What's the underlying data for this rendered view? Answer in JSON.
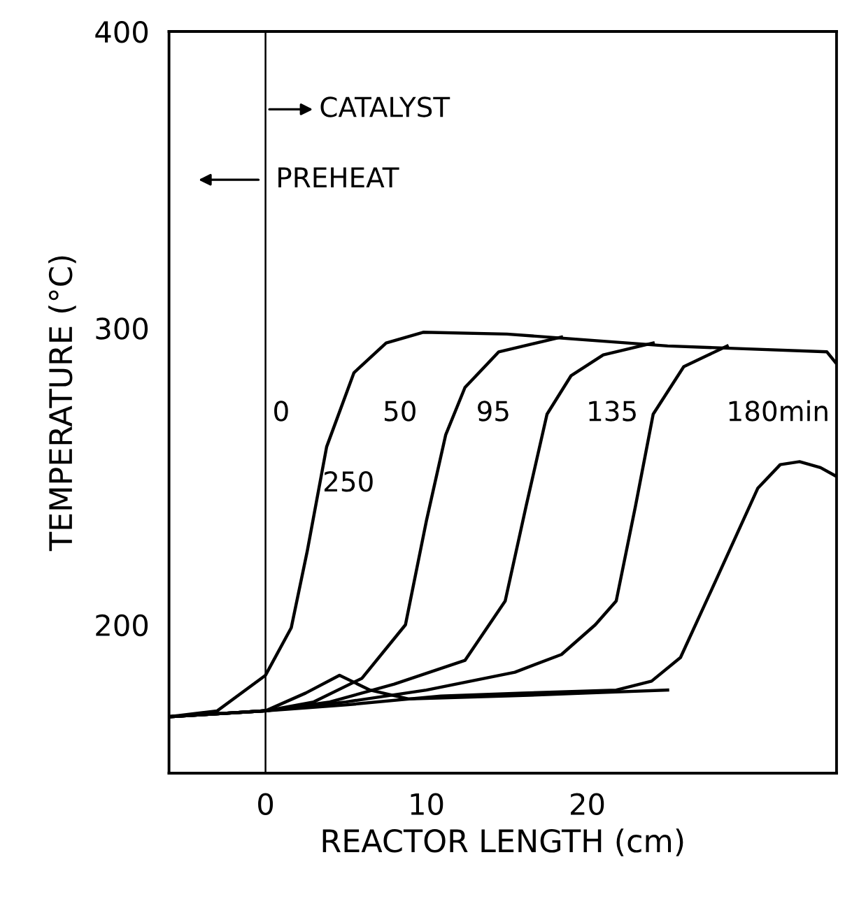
{
  "chart_data": {
    "type": "line",
    "xlabel": "REACTOR LENGTH (cm)",
    "ylabel": "TEMPERATURE (°C)",
    "xlim": [
      -6,
      35.5
    ],
    "ylim": [
      150,
      400
    ],
    "xticks": [
      0,
      10,
      20
    ],
    "yticks": [
      200,
      300,
      400
    ],
    "grid": false,
    "legend": false,
    "marker": "none",
    "line_style": "solid",
    "ref_lines": [
      {
        "axis": "x",
        "value": 0,
        "color": "#000000"
      }
    ],
    "series": [
      {
        "color": "#000000",
        "x": [
          -6,
          -3,
          0,
          1.6,
          2.6,
          3.8,
          5.5,
          7.5,
          9.8,
          15,
          20,
          25,
          30,
          34.9,
          35.5
        ],
        "values": [
          169,
          171,
          183,
          199,
          225,
          260,
          285,
          295,
          298.6,
          298,
          296,
          294,
          293,
          292,
          288
        ]
      },
      {
        "color": "#000000",
        "x": [
          -6,
          0,
          3,
          6,
          8.7,
          10,
          11.2,
          12.4,
          14.5,
          18.4
        ],
        "values": [
          169,
          171,
          174,
          182,
          200,
          235,
          264,
          280,
          292,
          297
        ]
      },
      {
        "color": "#000000",
        "x": [
          -6,
          0,
          4,
          8,
          12.4,
          14.9,
          16.2,
          17.5,
          19,
          21,
          24.1
        ],
        "values": [
          169,
          171,
          174,
          180,
          188,
          208,
          240,
          271,
          284,
          291,
          295
        ]
      },
      {
        "color": "#000000",
        "x": [
          -6,
          0,
          5,
          10,
          15.5,
          18.4,
          20.5,
          21.8,
          23,
          24.1,
          26,
          28.7
        ],
        "values": [
          169,
          171,
          174,
          178,
          184,
          190,
          200,
          208,
          240,
          271,
          287,
          294
        ]
      },
      {
        "color": "#000000",
        "x": [
          -6,
          0,
          5,
          10.9,
          16,
          21.8,
          24,
          25.8,
          28,
          30.6,
          32,
          33.2,
          34.5,
          35.5
        ],
        "values": [
          169,
          171,
          173,
          176,
          177,
          178,
          181,
          189,
          215,
          246,
          254,
          255,
          253,
          250
        ]
      },
      {
        "color": "#000000",
        "x": [
          -6,
          0,
          2.5,
          4.6,
          6.5,
          8.9,
          15,
          20,
          25
        ],
        "values": [
          169,
          171,
          177,
          183,
          178,
          175,
          176,
          177,
          178
        ]
      }
    ],
    "annotations": [
      "0",
      "50",
      "95",
      "135",
      "180min",
      "250",
      "CATALYST",
      "PREHEAT"
    ]
  }
}
